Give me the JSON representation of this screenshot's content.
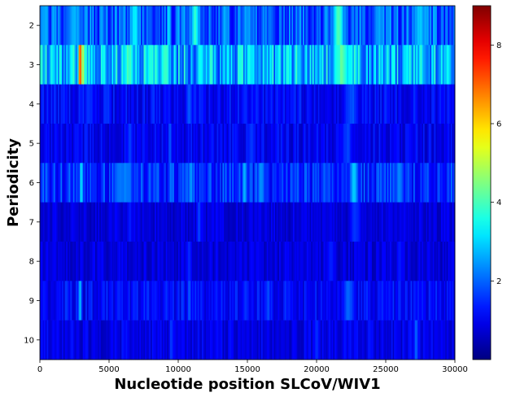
{
  "chart_data": {
    "type": "heatmap",
    "title": "",
    "xlabel": "Nucleotide position SLCoV/WIV1",
    "ylabel": "Periodicity",
    "xlim": [
      0,
      30000
    ],
    "x_ticks": [
      0,
      5000,
      10000,
      15000,
      20000,
      25000,
      30000
    ],
    "x_tick_labels": [
      "0",
      "5000",
      "10000",
      "15000",
      "20000",
      "25000",
      "30000"
    ],
    "periodicity_rows": [
      2,
      3,
      4,
      5,
      6,
      7,
      8,
      9,
      10
    ],
    "y_tick_labels": [
      "2",
      "3",
      "4",
      "5",
      "6",
      "7",
      "8",
      "9",
      "10"
    ],
    "colormap": "jet",
    "colorbar": {
      "min": 0,
      "max": 9,
      "ticks": [
        2,
        4,
        6,
        8
      ],
      "tick_labels": [
        "2",
        "4",
        "6",
        "8"
      ]
    },
    "bin_width": 100,
    "rows": [
      {
        "periodicity": 2,
        "baseline": 1.9,
        "peaks": [
          {
            "x": 6900,
            "w": 600,
            "v": 3.6
          },
          {
            "x": 9300,
            "w": 200,
            "v": 3.8
          },
          {
            "x": 11200,
            "w": 500,
            "v": 4.0
          },
          {
            "x": 21600,
            "w": 700,
            "v": 4.2
          },
          {
            "x": 15000,
            "w": 900,
            "v": 2.8
          },
          {
            "x": 24500,
            "w": 800,
            "v": 2.9
          },
          {
            "x": 27500,
            "w": 1200,
            "v": 3.0
          },
          {
            "x": 2500,
            "w": 1500,
            "v": 2.6
          }
        ]
      },
      {
        "periodicity": 3,
        "baseline": 2.7,
        "peaks": [
          {
            "x": 2900,
            "w": 150,
            "v": 8.9
          },
          {
            "x": 3100,
            "w": 150,
            "v": 6.5
          },
          {
            "x": 6400,
            "w": 900,
            "v": 4.2
          },
          {
            "x": 8000,
            "w": 800,
            "v": 3.8
          },
          {
            "x": 11600,
            "w": 600,
            "v": 3.9
          },
          {
            "x": 13300,
            "w": 300,
            "v": 3.6
          },
          {
            "x": 21800,
            "w": 1200,
            "v": 4.3
          },
          {
            "x": 26500,
            "w": 600,
            "v": 3.5
          },
          {
            "x": 29500,
            "w": 500,
            "v": 3.6
          }
        ]
      },
      {
        "periodicity": 4,
        "baseline": 1.1,
        "peaks": [
          {
            "x": 10800,
            "w": 500,
            "v": 1.9
          },
          {
            "x": 22500,
            "w": 1000,
            "v": 2.0
          },
          {
            "x": 14800,
            "w": 600,
            "v": 1.6
          }
        ]
      },
      {
        "periodicity": 5,
        "baseline": 1.0,
        "peaks": [
          {
            "x": 6500,
            "w": 500,
            "v": 1.7
          },
          {
            "x": 9400,
            "w": 150,
            "v": 2.4
          },
          {
            "x": 15300,
            "w": 500,
            "v": 1.7
          },
          {
            "x": 22200,
            "w": 800,
            "v": 1.8
          }
        ]
      },
      {
        "periodicity": 6,
        "baseline": 1.5,
        "peaks": [
          {
            "x": 3000,
            "w": 250,
            "v": 3.3
          },
          {
            "x": 6000,
            "w": 1500,
            "v": 2.4
          },
          {
            "x": 10900,
            "w": 400,
            "v": 2.6
          },
          {
            "x": 14800,
            "w": 400,
            "v": 2.8
          },
          {
            "x": 16000,
            "w": 500,
            "v": 2.6
          },
          {
            "x": 22700,
            "w": 600,
            "v": 3.1
          },
          {
            "x": 26000,
            "w": 600,
            "v": 2.4
          }
        ]
      },
      {
        "periodicity": 7,
        "baseline": 0.8,
        "peaks": [
          {
            "x": 11500,
            "w": 300,
            "v": 1.9
          },
          {
            "x": 22800,
            "w": 800,
            "v": 1.7
          },
          {
            "x": 6500,
            "w": 400,
            "v": 1.5
          }
        ]
      },
      {
        "periodicity": 8,
        "baseline": 0.8,
        "peaks": [
          {
            "x": 10800,
            "w": 400,
            "v": 1.6
          },
          {
            "x": 21000,
            "w": 500,
            "v": 1.6
          },
          {
            "x": 26000,
            "w": 400,
            "v": 1.6
          }
        ]
      },
      {
        "periodicity": 9,
        "baseline": 1.1,
        "peaks": [
          {
            "x": 2900,
            "w": 250,
            "v": 2.9
          },
          {
            "x": 10800,
            "w": 300,
            "v": 2.1
          },
          {
            "x": 22300,
            "w": 800,
            "v": 2.2
          },
          {
            "x": 16500,
            "w": 400,
            "v": 1.9
          }
        ]
      },
      {
        "periodicity": 10,
        "baseline": 0.9,
        "peaks": [
          {
            "x": 9500,
            "w": 300,
            "v": 1.7
          },
          {
            "x": 20000,
            "w": 400,
            "v": 1.6
          },
          {
            "x": 27200,
            "w": 300,
            "v": 2.1
          }
        ]
      }
    ]
  }
}
